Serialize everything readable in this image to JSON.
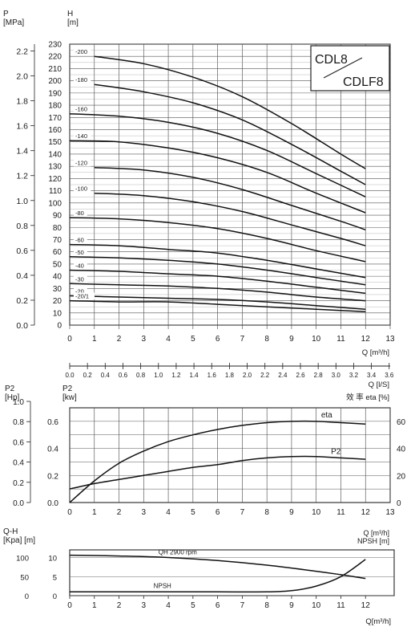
{
  "chart_data": [
    {
      "type": "line",
      "title_box": {
        "line1": "CDL8",
        "line2": "CDLF8"
      },
      "left_axis_label": {
        "line1": "P",
        "line2": "[MPa]"
      },
      "head_axis_label": {
        "line1": "H",
        "line2": "[m]"
      },
      "xlabel": "Q  [m³/h]",
      "xlim": [
        0,
        13
      ],
      "ylim": [
        0,
        230
      ],
      "x_ticks": [
        "0",
        "1",
        "2",
        "3",
        "4",
        "5",
        "6",
        "7",
        "8",
        "9",
        "10",
        "11",
        "12",
        "13"
      ],
      "h_ticks": [
        "0",
        "10",
        "20",
        "30",
        "40",
        "50",
        "60",
        "70",
        "80",
        "90",
        "100",
        "110",
        "120",
        "130",
        "140",
        "150",
        "160",
        "170",
        "180",
        "190",
        "200",
        "210",
        "220",
        "230"
      ],
      "p_ticks": [
        "0.0",
        "0.2",
        "0.4",
        "0.6",
        "0.8",
        "1.0",
        "1.2",
        "1.4",
        "1.6",
        "1.8",
        "2.0",
        "2.2"
      ],
      "ls_axis": {
        "label": "Q  [l/S]",
        "ticks": [
          "0.0",
          "0.2",
          "0.4",
          "0.6",
          "0.8",
          "1.0",
          "1.2",
          "1.4",
          "1.6",
          "1.8",
          "2.0",
          "2.2",
          "2.4",
          "2.6",
          "2.8",
          "3.0",
          "3.2",
          "3.4",
          "3.6"
        ]
      },
      "series": [
        {
          "name": "-200",
          "x": [
            1,
            3,
            5,
            7,
            9,
            11,
            12
          ],
          "y": [
            220,
            214,
            203,
            187,
            165,
            140,
            128
          ]
        },
        {
          "name": "-180",
          "x": [
            1,
            3,
            5,
            7,
            9,
            11,
            12
          ],
          "y": [
            197,
            191,
            182,
            168,
            148,
            126,
            115
          ]
        },
        {
          "name": "-160",
          "x": [
            0,
            2,
            4,
            6,
            8,
            10,
            12
          ],
          "y": [
            173,
            171,
            166,
            157,
            143,
            124,
            105
          ]
        },
        {
          "name": "-140",
          "x": [
            0,
            2,
            4,
            6,
            8,
            10,
            12
          ],
          "y": [
            151,
            150,
            145,
            137,
            125,
            108,
            92
          ]
        },
        {
          "name": "-120",
          "x": [
            1,
            3,
            5,
            7,
            9,
            11,
            12
          ],
          "y": [
            129,
            127,
            121,
            111,
            98,
            85,
            78
          ]
        },
        {
          "name": "-100",
          "x": [
            1,
            3,
            5,
            7,
            9,
            11,
            12
          ],
          "y": [
            108,
            106,
            101,
            93,
            82,
            71,
            65
          ]
        },
        {
          "name": "-80",
          "x": [
            0,
            2,
            4,
            6,
            8,
            10,
            12
          ],
          "y": [
            88,
            87,
            84,
            79,
            71,
            61,
            52
          ]
        },
        {
          "name": "-60",
          "x": [
            0,
            2,
            4,
            6,
            8,
            10,
            12
          ],
          "y": [
            66,
            65,
            62,
            59,
            53,
            46,
            39
          ]
        },
        {
          "name": "-50",
          "x": [
            0,
            2,
            4,
            6,
            8,
            10,
            12
          ],
          "y": [
            56,
            55,
            53,
            50,
            45,
            39,
            33
          ]
        },
        {
          "name": "-40",
          "x": [
            0,
            2,
            4,
            6,
            8,
            10,
            12
          ],
          "y": [
            45,
            44,
            42,
            40,
            36,
            31,
            26
          ]
        },
        {
          "name": "-30",
          "x": [
            0,
            2,
            4,
            6,
            8,
            10,
            12
          ],
          "y": [
            34,
            33,
            32,
            30,
            27,
            23,
            20
          ]
        },
        {
          "name": "-20",
          "x": [
            0,
            2,
            4,
            6,
            8,
            10,
            12
          ],
          "y": [
            24,
            23,
            22,
            21,
            19,
            16,
            13
          ]
        },
        {
          "name": "-20/1",
          "x": [
            0,
            2,
            4,
            6,
            8,
            10,
            12
          ],
          "y": [
            20,
            19,
            19,
            17,
            15,
            13,
            11
          ]
        }
      ]
    },
    {
      "type": "line",
      "xlabel": "Q  [m³/h]",
      "xlim": [
        0,
        13
      ],
      "x_ticks": [
        "0",
        "1",
        "2",
        "3",
        "4",
        "5",
        "6",
        "7",
        "8",
        "9",
        "10",
        "11",
        "12",
        "13"
      ],
      "hp_axis": {
        "line1": "P2",
        "line2": "[Hp]",
        "ticks": [
          "0.0",
          "0.2",
          "0.4",
          "0.6",
          "0.8",
          "1.0"
        ]
      },
      "kw_axis": {
        "line1": "P2",
        "line2": "[kw]",
        "ticks": [
          "0.0",
          "0.2",
          "0.4",
          "0.6"
        ],
        "ylim": [
          0,
          0.7
        ]
      },
      "eta_axis": {
        "label": "效 率 eta  [%]",
        "ticks": [
          "0",
          "20",
          "40",
          "60"
        ],
        "ylim": [
          0,
          70
        ]
      },
      "series": [
        {
          "name": "eta",
          "x": [
            0,
            1,
            2,
            3,
            4,
            5,
            6,
            7,
            8,
            9,
            10,
            11,
            12
          ],
          "y": [
            0,
            16,
            29,
            38,
            45,
            50,
            54,
            57,
            59,
            60,
            60,
            59,
            58
          ]
        },
        {
          "name": "P2",
          "x": [
            0,
            1,
            2,
            3,
            4,
            5,
            6,
            7,
            8,
            9,
            10,
            11,
            12
          ],
          "y": [
            0.1,
            0.14,
            0.17,
            0.2,
            0.23,
            0.26,
            0.28,
            0.31,
            0.33,
            0.34,
            0.34,
            0.33,
            0.32
          ]
        }
      ]
    },
    {
      "type": "line",
      "xlabel": "Q[m³/h]",
      "xlim": [
        0,
        12.5
      ],
      "x_ticks": [
        "0",
        "1",
        "2",
        "3",
        "4",
        "5",
        "6",
        "7",
        "8",
        "9",
        "10",
        "11",
        "12"
      ],
      "qh_axis": {
        "line1": "Q-H",
        "line2": "[Kpa]  [m]",
        "kpa_ticks": [
          "0",
          "50",
          "100"
        ],
        "m_ticks": [
          "0",
          "5",
          "10"
        ],
        "ylim": [
          0,
          12
        ]
      },
      "npsh_axis": {
        "line1": "Q  [m³/h]",
        "line2": "NPSH  [m]"
      },
      "series": [
        {
          "name": "QH  2900 rpm",
          "x": [
            0,
            2,
            4,
            6,
            8,
            10,
            11,
            12
          ],
          "y": [
            10.6,
            10.4,
            10.0,
            9.2,
            8.0,
            6.4,
            5.5,
            4.5
          ]
        },
        {
          "name": "NPSH",
          "x": [
            0,
            2,
            4,
            6,
            8,
            9,
            10,
            11,
            12
          ],
          "y": [
            1.0,
            1.0,
            1.0,
            1.0,
            1.0,
            1.3,
            2.5,
            5.0,
            9.5
          ]
        }
      ]
    }
  ]
}
